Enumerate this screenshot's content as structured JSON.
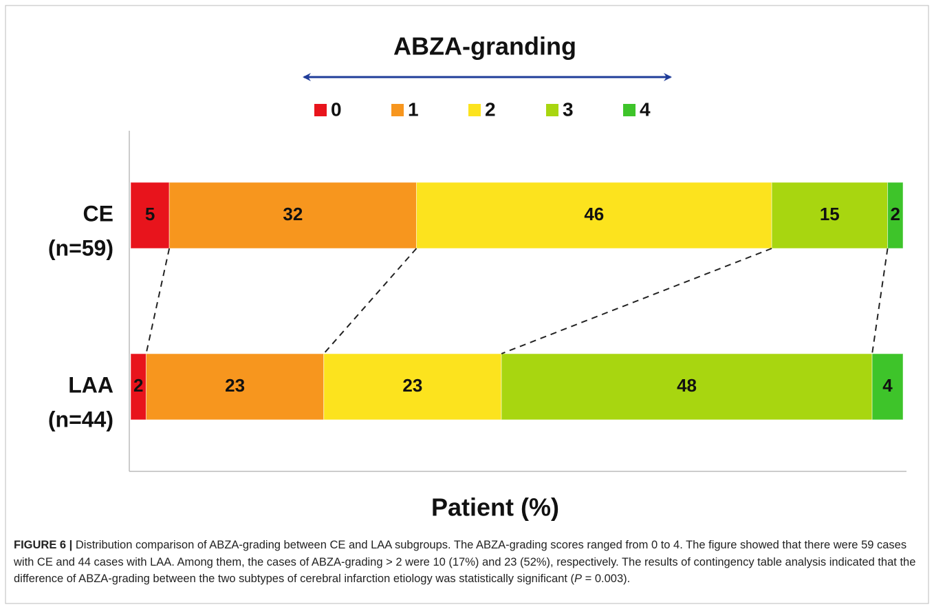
{
  "chart_data": {
    "type": "stacked_bar",
    "orientation": "horizontal",
    "title": "ABZA-granding",
    "categories": [
      "CE",
      "LAA"
    ],
    "category_sublabels": [
      "(n=59)",
      "(n=44)"
    ],
    "series": [
      {
        "name": "0",
        "color": "#e8141c",
        "values": [
          5,
          2
        ]
      },
      {
        "name": "1",
        "color": "#f7961e",
        "values": [
          32,
          23
        ]
      },
      {
        "name": "2",
        "color": "#fce31e",
        "values": [
          46,
          23
        ]
      },
      {
        "name": "3",
        "color": "#a8d610",
        "values": [
          15,
          48
        ]
      },
      {
        "name": "4",
        "color": "#3ec42a",
        "values": [
          2,
          4
        ]
      }
    ],
    "xlim": [
      0,
      100
    ],
    "xlabel": "Patient (%)"
  },
  "caption": {
    "label": "FIGURE 6 |",
    "text_before": " Distribution comparison of ABZA-grading between CE and LAA subgroups. The ABZA-grading scores ranged from 0 to 4. The figure showed that there were 59 cases with CE and 44 cases with LAA. Among them, the cases of ABZA-grading > 2 were 10 (17%) and 23 (52%), respectively. The results of contingency table analysis indicated that the difference of ABZA-grading between the two subtypes of cerebral infarction etiology was statistically significant (",
    "italic": "P",
    "text_after": " = 0.003)."
  }
}
